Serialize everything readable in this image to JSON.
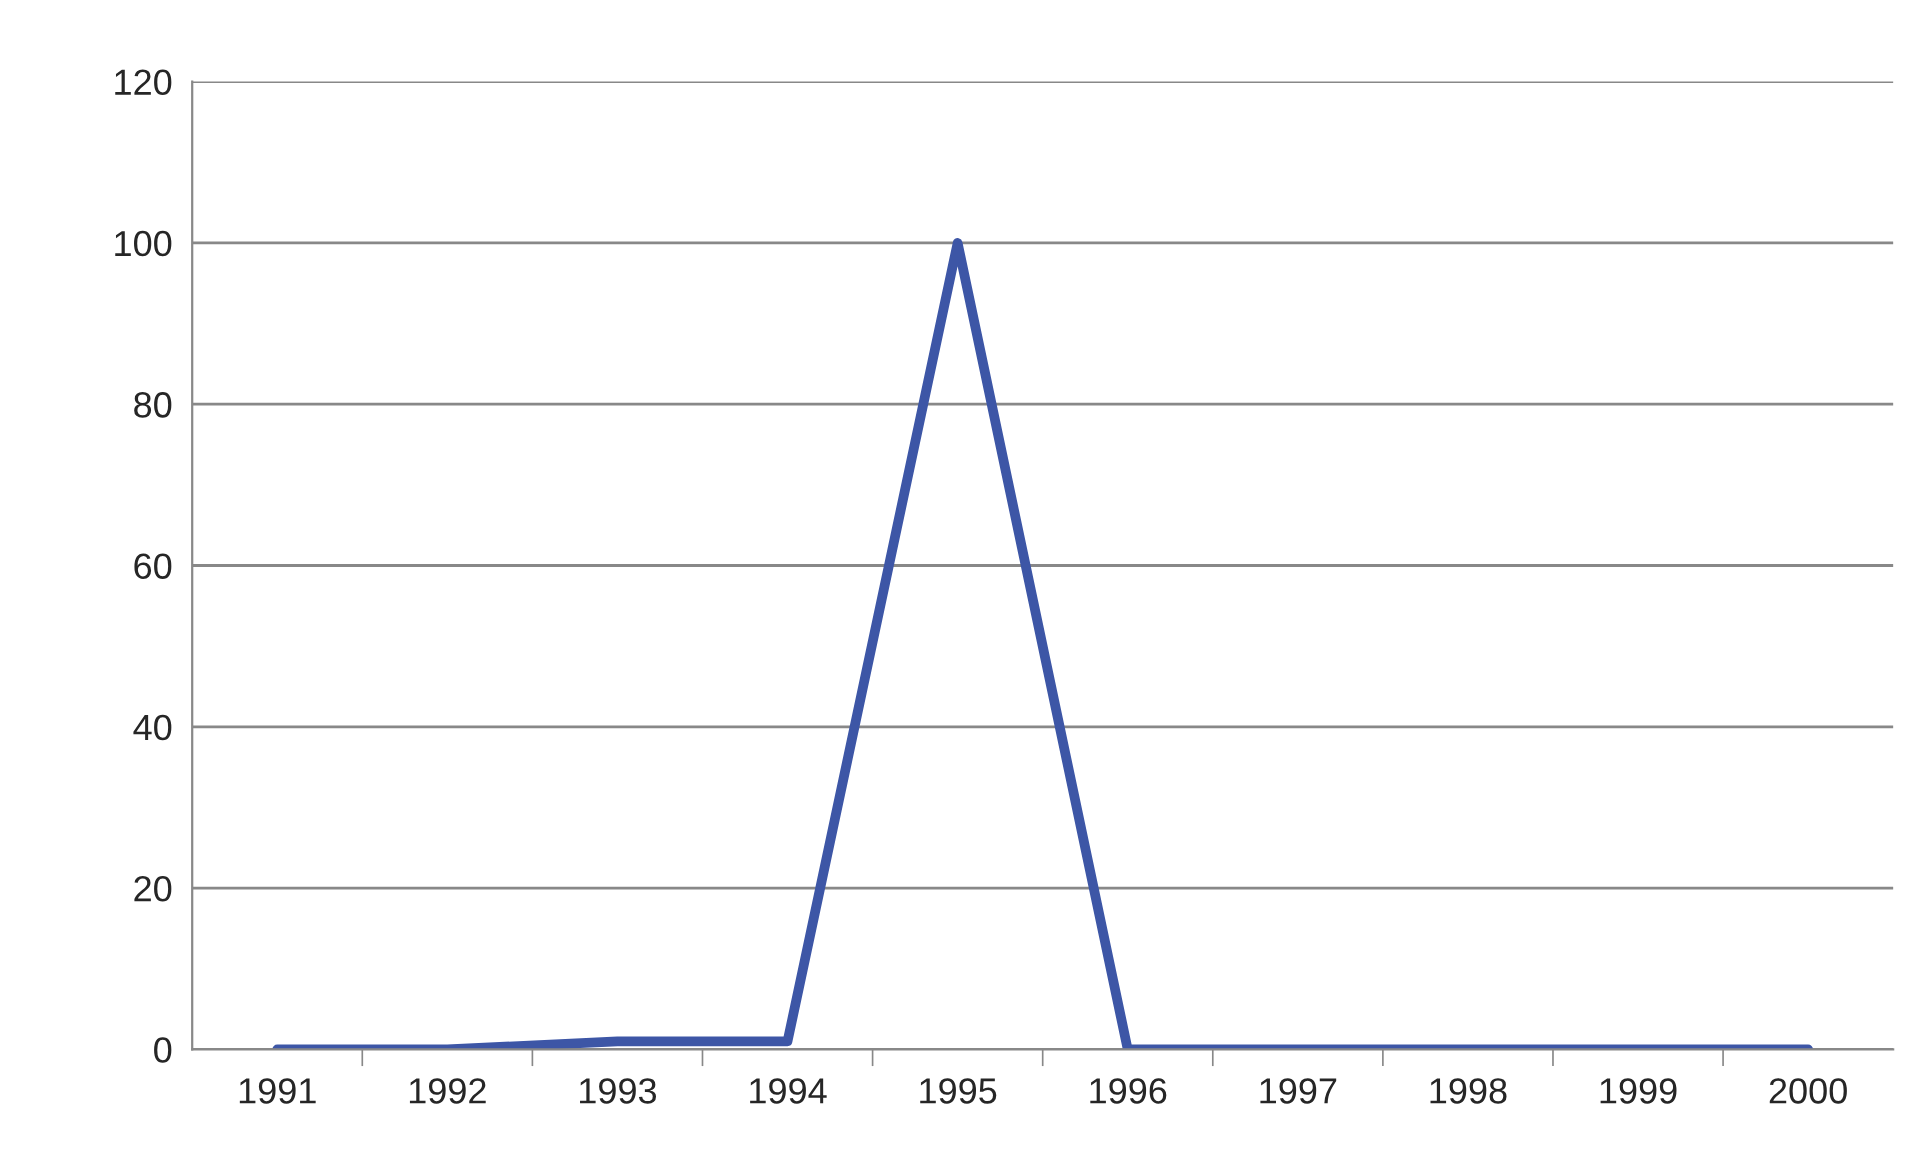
{
  "chart_data": {
    "type": "line",
    "categories": [
      "1991",
      "1992",
      "1993",
      "1994",
      "1995",
      "1996",
      "1997",
      "1998",
      "1999",
      "2000"
    ],
    "series": [
      {
        "color": "#3d56a6",
        "values": [
          0,
          0,
          1,
          1,
          100,
          0,
          0,
          0,
          0,
          0
        ]
      }
    ],
    "ylim": [
      0,
      120
    ],
    "yticks": [
      0,
      20,
      40,
      60,
      80,
      100,
      120
    ],
    "grid": "y",
    "marker": "none",
    "line_style": "solid"
  }
}
